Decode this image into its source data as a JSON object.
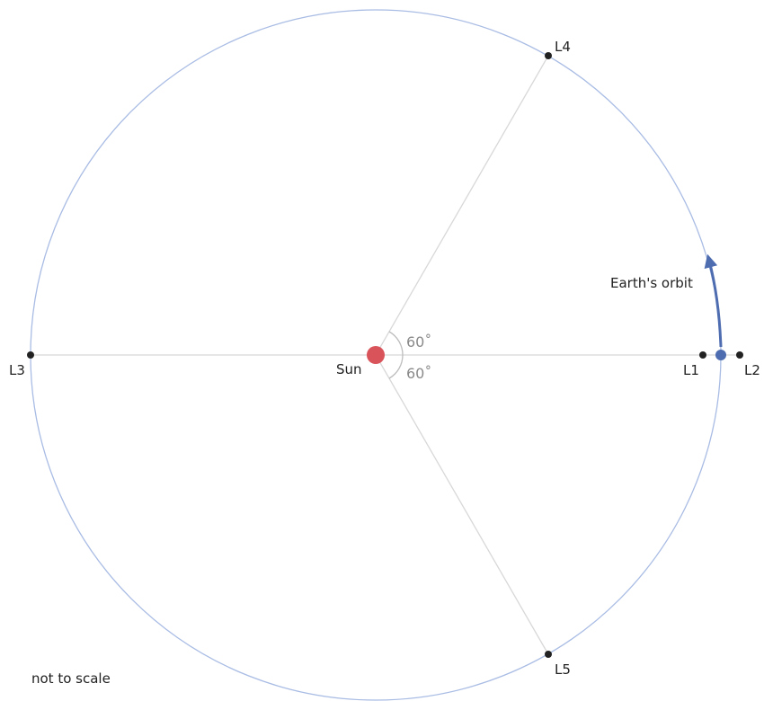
{
  "diagram": {
    "bodies": {
      "sun": {
        "label": "Sun",
        "color": "#d9535a"
      },
      "earth": {
        "color": "#4e6cb0"
      }
    },
    "lagrange_points": {
      "l1": "L1",
      "l2": "L2",
      "l3": "L3",
      "l4": "L4",
      "l5": "L5"
    },
    "angles": {
      "upper": "60˚",
      "lower": "60˚"
    },
    "orbit_label": "Earth's orbit",
    "note": "not to scale",
    "colors": {
      "orbit": "#a9bce4",
      "spokes": "#d8d8d8",
      "angle_arc": "#bdbdbd",
      "points": "#222222",
      "orbit_arrow": "#4e6cb0"
    }
  }
}
